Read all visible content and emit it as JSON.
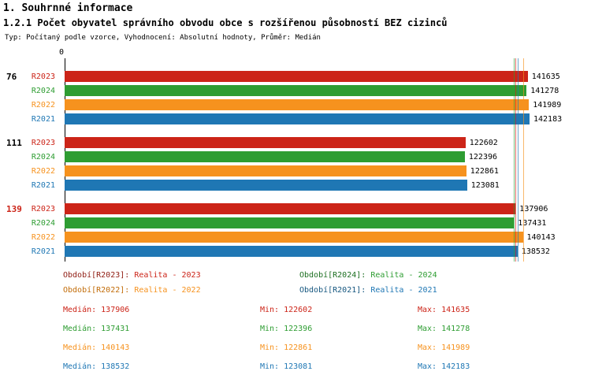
{
  "page": {
    "title": "1. Souhrnné informace",
    "subtitle": "1.2.1 Počet obyvatel správního obvodu obce s rozšířenou působností BEZ cizinců",
    "meta": "Typ: Počítaný podle vzorce, Vyhodnocení: Absolutní hodnoty, Průměr: Medián"
  },
  "colors": {
    "R2023": {
      "main": "#cc2418",
      "dark": "#8e1a10"
    },
    "R2024": {
      "main": "#2e9d32",
      "dark": "#1c6f20"
    },
    "R2022": {
      "main": "#f6921e",
      "dark": "#c26c08"
    },
    "R2021": {
      "main": "#1f77b4",
      "dark": "#15567f"
    }
  },
  "chart_data": {
    "type": "bar",
    "orientation": "horizontal",
    "title": "1.2.1 Počet obyvatel správního obvodu obce s rozšířenou působností BEZ cizinců",
    "xlabel": "",
    "ylabel": "",
    "xlim": [
      0,
      142183
    ],
    "x_axis_start_label": "0",
    "grid": false,
    "series_order": [
      "R2023",
      "R2024",
      "R2022",
      "R2021"
    ],
    "groups": [
      {
        "label": "76",
        "label_color": "#000000",
        "values": {
          "R2023": 141635,
          "R2024": 141278,
          "R2022": 141989,
          "R2021": 142183
        }
      },
      {
        "label": "111",
        "label_color": "#000000",
        "values": {
          "R2023": 122602,
          "R2024": 122396,
          "R2022": 122861,
          "R2021": 123081
        }
      },
      {
        "label": "139",
        "label_color": "#cc2418",
        "values": {
          "R2023": 137906,
          "R2024": 137431,
          "R2022": 140143,
          "R2021": 138532
        }
      }
    ],
    "median_lines": {
      "R2023": 137906,
      "R2024": 137431,
      "R2022": 140143,
      "R2021": 138532
    }
  },
  "legend": {
    "items": [
      {
        "series": "R2023",
        "label": "Období[R2023]:",
        "value": "Realita - 2023"
      },
      {
        "series": "R2024",
        "label": "Období[R2024]:",
        "value": "Realita - 2024"
      },
      {
        "series": "R2022",
        "label": "Období[R2022]:",
        "value": "Realita - 2022"
      },
      {
        "series": "R2021",
        "label": "Období[R2021]:",
        "value": "Realita - 2021"
      }
    ]
  },
  "stats": {
    "median_label": "Medián",
    "min_label": "Min",
    "max_label": "Max",
    "rows": [
      {
        "series": "R2023",
        "median": 137906,
        "min": 122602,
        "max": 141635
      },
      {
        "series": "R2024",
        "median": 137431,
        "min": 122396,
        "max": 141278
      },
      {
        "series": "R2022",
        "median": 140143,
        "min": 122861,
        "max": 141989
      },
      {
        "series": "R2021",
        "median": 138532,
        "min": 123081,
        "max": 142183
      }
    ]
  }
}
